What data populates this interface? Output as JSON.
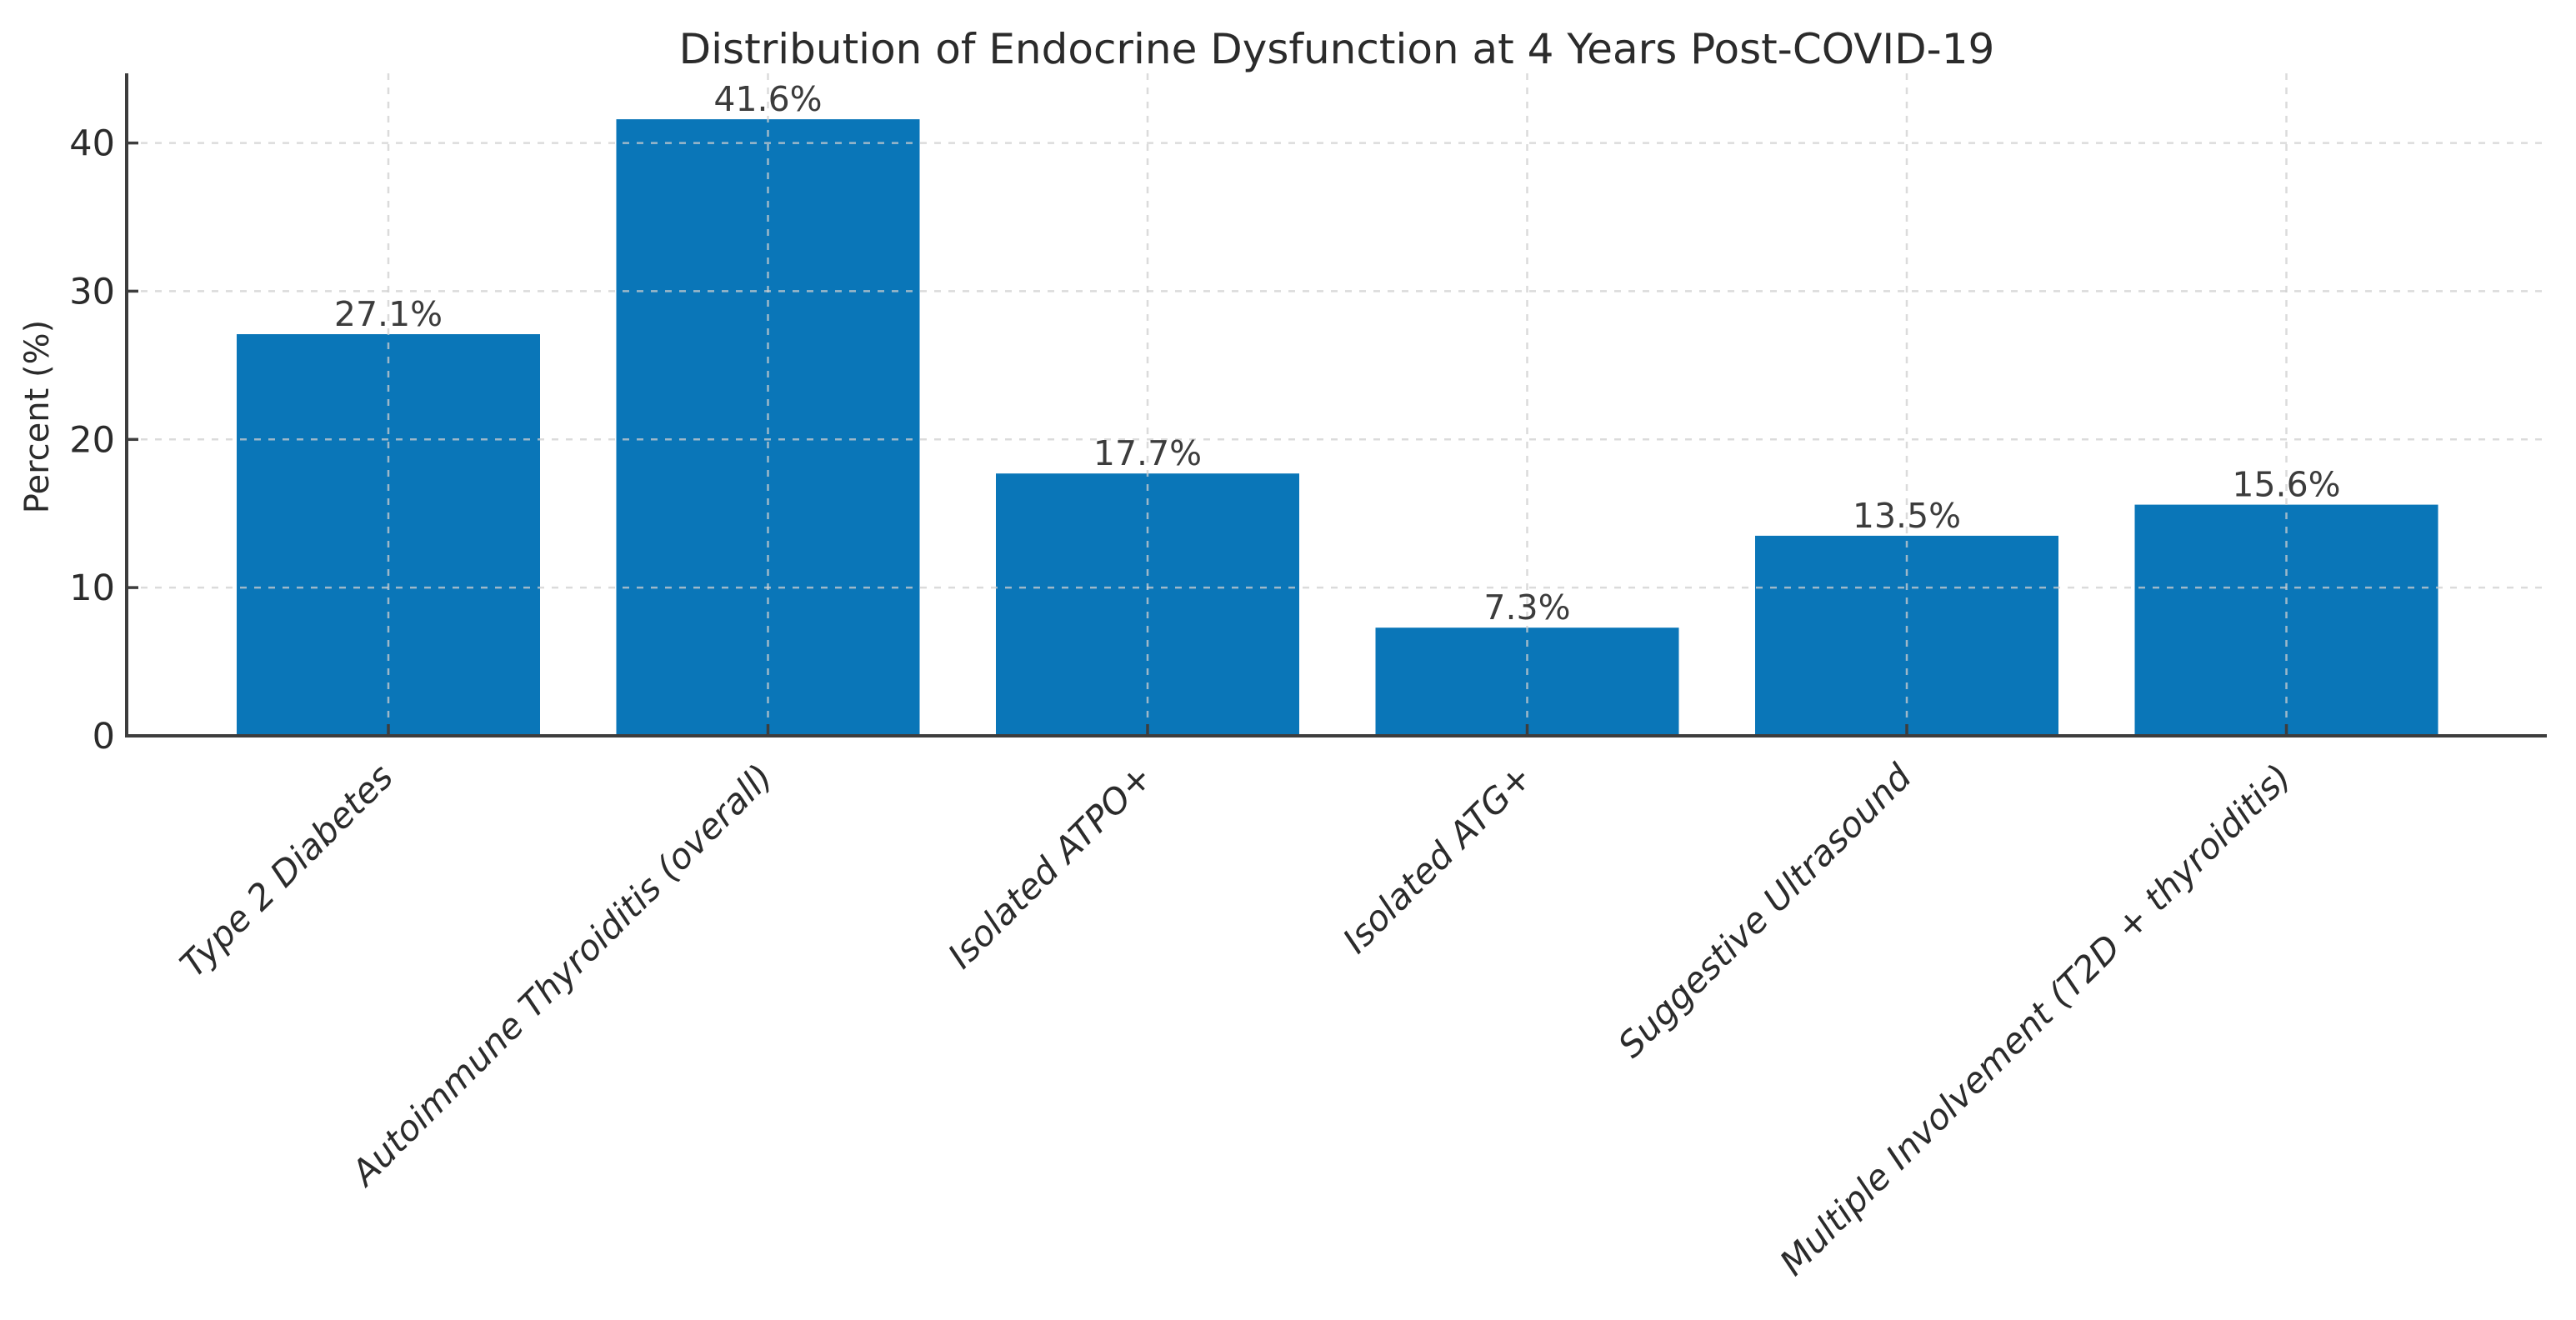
{
  "figure": {
    "title": "Distribution of Endocrine Dysfunction at 4 Years Post-COVID-19"
  },
  "chart_data": {
    "type": "bar",
    "title": "Distribution of Endocrine Dysfunction at 4 Years Post-COVID-19",
    "categories": [
      "Type 2 Diabetes",
      "Autoimmune Thyroiditis (overall)",
      "Isolated ATPO+",
      "Isolated ATG+",
      "Suggestive Ultrasound",
      "Multiple Involvement (T2D + thyroiditis)"
    ],
    "values": [
      27.1,
      41.6,
      17.7,
      7.3,
      13.5,
      15.6
    ],
    "value_labels": [
      "27.1%",
      "41.6%",
      "17.7%",
      "7.3%",
      "13.5%",
      "15.6%"
    ],
    "xlabel": "",
    "ylabel": "Percent (%)",
    "yticks": [
      0,
      10,
      20,
      30,
      40
    ],
    "ytick_labels": [
      "0",
      "10",
      "20",
      "30",
      "40"
    ],
    "ylim": [
      0,
      44.7
    ],
    "grid": "dashed-both-axes",
    "legend": "none",
    "bar_color": "#0a76b8",
    "grid_color": "#cfcfcf",
    "spine_color": "#3d3d3d",
    "text_color": "#2b2b2b",
    "value_label_color": "#3c3c3c",
    "background_color": "#ffffff"
  }
}
